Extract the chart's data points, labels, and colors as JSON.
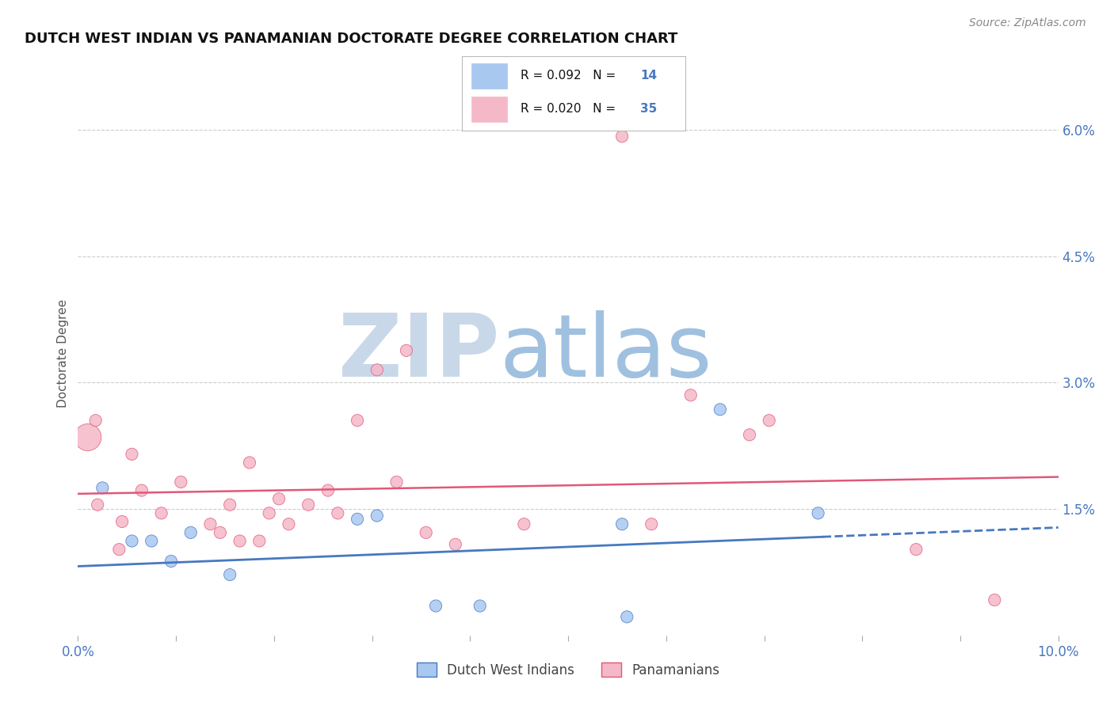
{
  "title": "DUTCH WEST INDIAN VS PANAMANIAN DOCTORATE DEGREE CORRELATION CHART",
  "source": "Source: ZipAtlas.com",
  "ylabel_left": "Doctorate Degree",
  "x_tick_labels": [
    "0.0%",
    "",
    "",
    "",
    "",
    "",
    "",
    "",
    "",
    "",
    "10.0%"
  ],
  "y_ticks_right": [
    0.0,
    1.5,
    3.0,
    4.5,
    6.0
  ],
  "y_tick_labels_right": [
    "",
    "1.5%",
    "3.0%",
    "4.5%",
    "6.0%"
  ],
  "xlim": [
    0.0,
    10.0
  ],
  "ylim": [
    0.0,
    6.7
  ],
  "blue_label": "Dutch West Indians",
  "pink_label": "Panamanians",
  "blue_R": "R = 0.092",
  "blue_N": "N = 14",
  "pink_R": "R = 0.020",
  "pink_N": "N = 35",
  "blue_color": "#a8c8f0",
  "pink_color": "#f5b8c8",
  "trend_blue_color": "#4878c0",
  "trend_pink_color": "#e05878",
  "watermark_zip_color": "#c8d8e8",
  "watermark_atlas_color": "#a0c0e0",
  "blue_scatter_x": [
    0.25,
    0.55,
    0.75,
    0.95,
    1.15,
    1.55,
    2.85,
    3.05,
    3.65,
    4.1,
    5.55,
    6.55,
    7.55,
    5.6
  ],
  "blue_scatter_y": [
    1.75,
    1.12,
    1.12,
    0.88,
    1.22,
    0.72,
    1.38,
    1.42,
    0.35,
    0.35,
    1.32,
    2.68,
    1.45,
    0.22
  ],
  "blue_scatter_sizes": [
    120,
    120,
    120,
    120,
    120,
    120,
    120,
    120,
    120,
    120,
    120,
    120,
    120,
    120
  ],
  "pink_scatter_x": [
    0.1,
    0.2,
    0.45,
    0.55,
    0.65,
    0.85,
    1.05,
    1.35,
    1.45,
    1.55,
    1.65,
    1.75,
    1.95,
    2.05,
    2.15,
    2.35,
    2.55,
    2.65,
    2.85,
    3.05,
    3.35,
    3.55,
    3.85,
    4.55,
    5.85,
    6.25,
    6.85,
    7.05,
    8.55,
    9.35,
    5.55,
    0.18,
    0.42,
    1.85,
    3.25
  ],
  "pink_scatter_y": [
    2.35,
    1.55,
    1.35,
    2.15,
    1.72,
    1.45,
    1.82,
    1.32,
    1.22,
    1.55,
    1.12,
    2.05,
    1.45,
    1.62,
    1.32,
    1.55,
    1.72,
    1.45,
    2.55,
    3.15,
    3.38,
    1.22,
    1.08,
    1.32,
    1.32,
    2.85,
    2.38,
    2.55,
    1.02,
    0.42,
    5.92,
    2.55,
    1.02,
    1.12,
    1.82
  ],
  "pink_scatter_sizes": [
    600,
    120,
    120,
    120,
    120,
    120,
    120,
    120,
    120,
    120,
    120,
    120,
    120,
    120,
    120,
    120,
    120,
    120,
    120,
    120,
    120,
    120,
    120,
    120,
    120,
    120,
    120,
    120,
    120,
    120,
    120,
    120,
    120,
    120,
    120
  ],
  "blue_trend_x0": 0.0,
  "blue_trend_x1": 10.0,
  "blue_trend_y0": 0.82,
  "blue_trend_y1": 1.28,
  "blue_solid_end_x": 7.6,
  "pink_trend_x0": 0.0,
  "pink_trend_x1": 10.0,
  "pink_trend_y0": 1.68,
  "pink_trend_y1": 1.88,
  "background_color": "#ffffff",
  "grid_color": "#cccccc",
  "axis_label_color": "#4878c0",
  "title_color": "#111111",
  "legend_R_color": "#111111",
  "legend_N_color": "#4878c0"
}
